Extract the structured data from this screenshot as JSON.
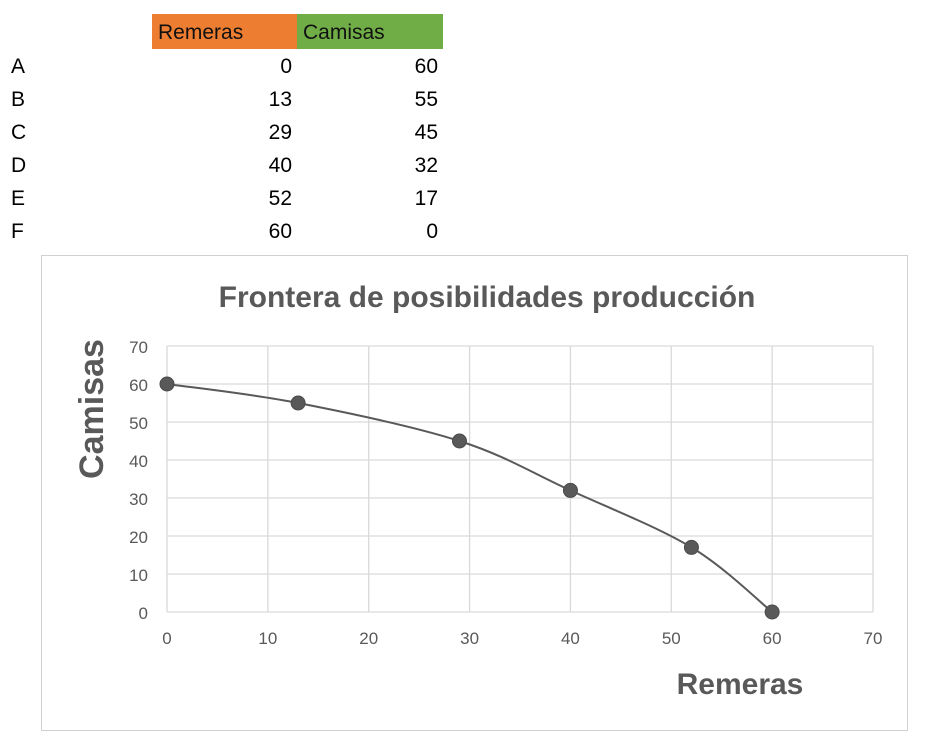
{
  "table": {
    "headers": [
      {
        "label": "Remeras",
        "color": "#ED7D31"
      },
      {
        "label": "Camisas",
        "color": "#70AD47"
      }
    ],
    "rows": [
      {
        "label": "A",
        "remeras": "0",
        "camisas": "60"
      },
      {
        "label": "B",
        "remeras": "13",
        "camisas": "55"
      },
      {
        "label": "C",
        "remeras": "29",
        "camisas": "45"
      },
      {
        "label": "D",
        "remeras": "40",
        "camisas": "32"
      },
      {
        "label": "E",
        "remeras": "52",
        "camisas": "17"
      },
      {
        "label": "F",
        "remeras": "60",
        "camisas": "0"
      }
    ]
  },
  "chart_data": {
    "type": "scatter",
    "title": "Frontera de posibilidades producción",
    "xlabel": "Remeras",
    "ylabel": "Camisas",
    "xlim": [
      0,
      70
    ],
    "ylim": [
      0,
      70
    ],
    "xticks": [
      0,
      10,
      20,
      30,
      40,
      50,
      60,
      70
    ],
    "yticks": [
      0,
      10,
      20,
      30,
      40,
      50,
      60,
      70
    ],
    "grid": true,
    "smooth_line": true,
    "series": [
      {
        "x": [
          0,
          13,
          29,
          40,
          52,
          60
        ],
        "y": [
          60,
          55,
          45,
          32,
          17,
          0
        ],
        "color": "#595959"
      }
    ]
  }
}
